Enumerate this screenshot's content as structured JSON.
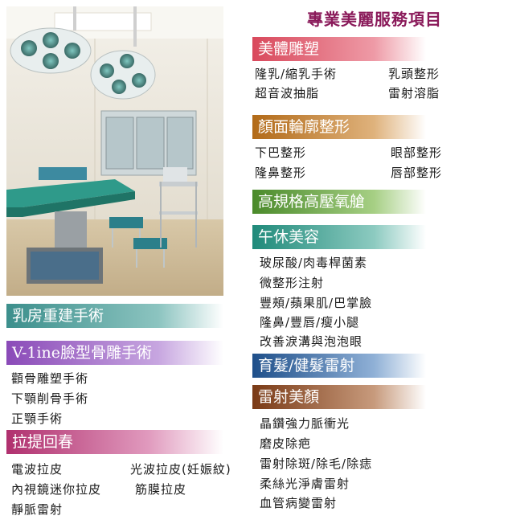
{
  "header": {
    "title": "專業美麗服務項目"
  },
  "left_sections": {
    "breast": {
      "title": "乳房重建手術",
      "color": "#3c8f8c"
    },
    "vline": {
      "title": "V-1ine臉型骨雕手術",
      "color": "#8a4ab8",
      "items": [
        "顴骨雕塑手術",
        "下顎削骨手術",
        "正顎手術"
      ]
    },
    "lift": {
      "title": "拉提回春",
      "color": "#b0306e",
      "items": [
        "電波拉皮",
        "光波拉皮(妊娠紋)",
        "內視鏡迷你拉皮",
        "筋膜拉皮",
        "靜脈雷射"
      ]
    }
  },
  "right_sections": {
    "body": {
      "title": "美體雕塑",
      "color": "#d9495c",
      "items": [
        "隆乳/縮乳手術",
        "乳頭整形",
        "超音波抽脂",
        "雷射溶脂"
      ]
    },
    "face": {
      "title": "顏面輪廓整形",
      "color": "#b26a18",
      "items": [
        "下巴整形",
        "眼部整形",
        "隆鼻整形",
        "唇部整形"
      ]
    },
    "oxygen": {
      "title": "高規格高壓氧艙",
      "color": "#4a8a2a"
    },
    "lunch": {
      "title": "午休美容",
      "color": "#1f8a7a",
      "items": [
        "玻尿酸/肉毒桿菌素",
        "微整形注射",
        "豐頰/蘋果肌/巴掌臉",
        "隆鼻/豐唇/瘦小腿",
        "改善淚溝與泡泡眼"
      ]
    },
    "hair": {
      "title": "育髮/健髮雷射",
      "color": "#1e4f8a"
    },
    "laser": {
      "title": "雷射美顏",
      "color": "#7a3a16",
      "items": [
        "晶鑽強力脈衝光",
        "磨皮除疤",
        "雷射除斑/除毛/除痣",
        "柔絲光淨膚雷射",
        "血管病變雷射"
      ]
    }
  },
  "photo": {
    "description_icon": "operating-room-photo"
  }
}
